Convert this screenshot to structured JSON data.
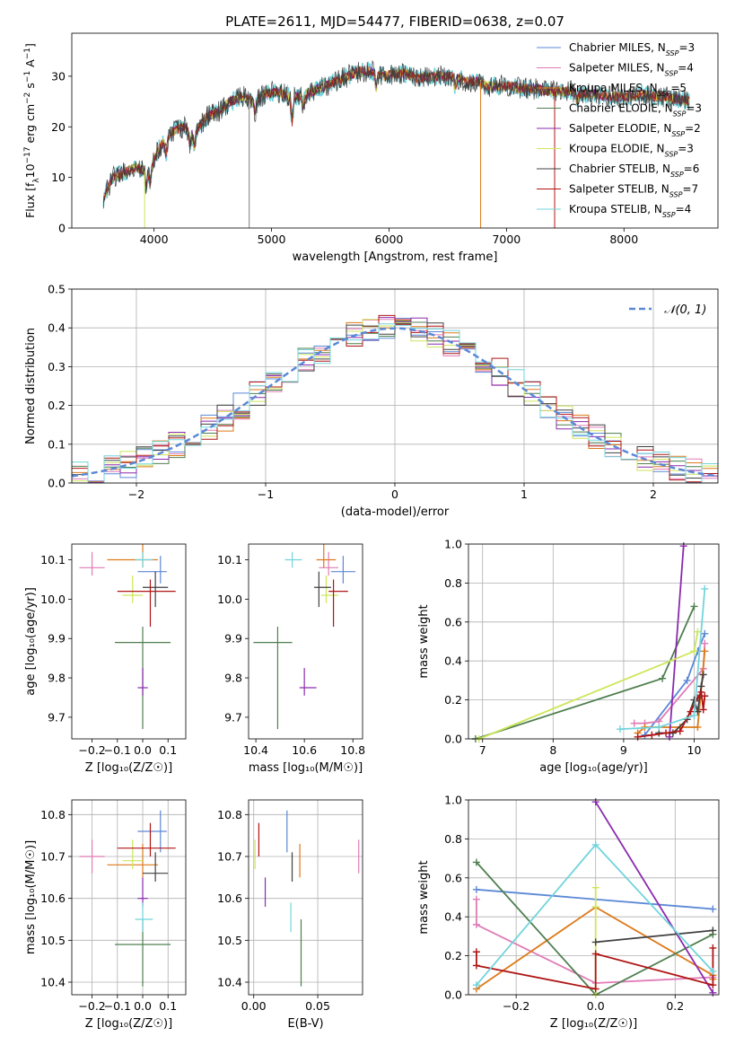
{
  "figure": {
    "title": "PLATE=2611, MJD=54477, FIBERID=0638, z=0.07"
  },
  "colors": {
    "Chabrier MILES": "#5b88d6",
    "Salpeter MILES": "#e07bb7",
    "Kroupa MILES": "#dd7a1a",
    "Chabrier ELODIE": "#4f7f4f",
    "Salpeter ELODIE": "#8b2aad",
    "Kroupa ELODIE": "#cde65a",
    "Chabrier STELIB": "#404040",
    "Salpeter STELIB": "#b01515",
    "Kroupa STELIB": "#72d4dc"
  },
  "chart_data": [
    {
      "id": "spectrum",
      "type": "line",
      "title": "PLATE=2611, MJD=54477, FIBERID=0638, z=0.07",
      "xlabel": "wavelength [Angstrom, rest frame]",
      "ylabel_parts": [
        "Flux [f",
        "λ",
        "10",
        "−17",
        " erg cm",
        "−2",
        " s",
        "−1",
        " A",
        "−1",
        "]"
      ],
      "xlim": [
        3300,
        8800
      ],
      "ylim": [
        0,
        38.5
      ],
      "xticks": [
        4000,
        5000,
        6000,
        7000,
        8000
      ],
      "yticks": [
        0,
        10,
        20,
        30
      ],
      "legend_location": "top-right",
      "legend": [
        {
          "model": "Chabrier MILES",
          "nssp": "3"
        },
        {
          "model": "Salpeter MILES",
          "nssp": "4"
        },
        {
          "model": "Kroupa MILES",
          "nssp": "5"
        },
        {
          "model": "Chabrier ELODIE",
          "nssp": "3"
        },
        {
          "model": "Salpeter ELODIE",
          "nssp": "2"
        },
        {
          "model": "Kroupa ELODIE",
          "nssp": "3"
        },
        {
          "model": "Chabrier STELIB",
          "nssp": "6"
        },
        {
          "model": "Salpeter STELIB",
          "nssp": "7"
        },
        {
          "model": "Kroupa STELIB",
          "nssp": "4"
        }
      ],
      "continuum": [
        [
          3570,
          6
        ],
        [
          3650,
          10
        ],
        [
          3750,
          11
        ],
        [
          3850,
          12
        ],
        [
          3950,
          11
        ],
        [
          4050,
          16
        ],
        [
          4150,
          19
        ],
        [
          4250,
          20
        ],
        [
          4350,
          19
        ],
        [
          4450,
          22
        ],
        [
          4550,
          23
        ],
        [
          4650,
          25
        ],
        [
          4750,
          26
        ],
        [
          4850,
          25
        ],
        [
          4950,
          26.5
        ],
        [
          5050,
          27
        ],
        [
          5150,
          26
        ],
        [
          5250,
          26
        ],
        [
          5350,
          27
        ],
        [
          5450,
          28
        ],
        [
          5550,
          29
        ],
        [
          5650,
          30
        ],
        [
          5750,
          31
        ],
        [
          5850,
          31
        ],
        [
          5950,
          30
        ],
        [
          6050,
          30.5
        ],
        [
          6150,
          30.5
        ],
        [
          6250,
          29.5
        ],
        [
          6350,
          30
        ],
        [
          6450,
          30
        ],
        [
          6550,
          30
        ],
        [
          6650,
          29
        ],
        [
          6750,
          29
        ],
        [
          6850,
          28
        ],
        [
          6950,
          28
        ],
        [
          7050,
          28
        ],
        [
          7150,
          27.5
        ],
        [
          7250,
          27.5
        ],
        [
          7350,
          27
        ],
        [
          7450,
          27
        ],
        [
          7550,
          27
        ],
        [
          7650,
          26.5
        ],
        [
          7750,
          26.5
        ],
        [
          7850,
          26
        ],
        [
          7950,
          26
        ],
        [
          8050,
          26
        ],
        [
          8150,
          26.5
        ],
        [
          8250,
          26
        ],
        [
          8350,
          26
        ],
        [
          8450,
          25.5
        ],
        [
          8550,
          25
        ]
      ],
      "absorption": [
        [
          3934,
          3
        ],
        [
          3969,
          3
        ],
        [
          4102,
          3
        ],
        [
          4305,
          3
        ],
        [
          4341,
          3
        ],
        [
          4861,
          2
        ],
        [
          5175,
          5
        ],
        [
          5270,
          2
        ],
        [
          5890,
          3
        ],
        [
          6563,
          2
        ],
        [
          7600,
          1.5
        ]
      ],
      "spikes": [
        [
          3920,
          0
        ],
        [
          4810,
          0
        ],
        [
          6780,
          0
        ],
        [
          7410,
          0
        ]
      ]
    },
    {
      "id": "residuals",
      "type": "histogram",
      "xlabel": "(data-model)/error",
      "ylabel": "Normed distribution",
      "xlim": [
        -2.5,
        2.5
      ],
      "ylim": [
        0,
        0.5
      ],
      "xticks": [
        -2,
        -1,
        0,
        1,
        2
      ],
      "yticks": [
        0,
        0.1,
        0.2,
        0.3,
        0.4,
        0.5
      ],
      "bin_width": 0.125,
      "legend_location": "top-right",
      "reference_curve": {
        "label": "𝒩(0, 1)",
        "mean": 0,
        "sigma": 1
      }
    },
    {
      "id": "z-age",
      "type": "scatter",
      "xlabel": "Z [log₁₀(Z/Z☉)]",
      "ylabel": "age [log₁₀(age/yr)]",
      "xlim": [
        -0.28,
        0.17
      ],
      "ylim": [
        9.645,
        10.14
      ],
      "xticks": [
        -0.2,
        -0.1,
        0.0,
        0.1
      ],
      "yticks": [
        9.7,
        9.8,
        9.9,
        10.0,
        10.1
      ]
    },
    {
      "id": "mass-age",
      "type": "scatter",
      "xlabel": "mass [log₁₀(M/M☉)]",
      "ylabel": "",
      "xlim": [
        10.37,
        10.84
      ],
      "ylim": [
        9.645,
        10.14
      ],
      "xticks": [
        10.4,
        10.6,
        10.8
      ],
      "yticks": [
        9.7,
        9.8,
        9.9,
        10.0,
        10.1
      ]
    },
    {
      "id": "z-mass",
      "type": "scatter",
      "xlabel": "Z [log₁₀(Z/Z☉)]",
      "ylabel": "mass [log₁₀(M/M☉)]",
      "xlim": [
        -0.28,
        0.17
      ],
      "ylim": [
        10.37,
        10.835
      ],
      "xticks": [
        -0.2,
        -0.1,
        0.0,
        0.1
      ],
      "yticks": [
        10.4,
        10.5,
        10.6,
        10.7,
        10.8
      ]
    },
    {
      "id": "ebv-mass",
      "type": "scatter",
      "xlabel": "E(B-V)",
      "ylabel": "",
      "xlim": [
        -0.004,
        0.085
      ],
      "ylim": [
        10.37,
        10.835
      ],
      "xticks": [
        0.0,
        0.05
      ],
      "yticks": [
        10.4,
        10.5,
        10.6,
        10.7,
        10.8
      ]
    },
    {
      "id": "age-weight",
      "type": "line",
      "xlabel": "age [log₁₀(age/yr)]",
      "ylabel": "mass weight",
      "xlim": [
        6.8,
        10.35
      ],
      "ylim": [
        0,
        1.0
      ],
      "xticks": [
        7,
        8,
        9,
        10
      ],
      "yticks": [
        0.0,
        0.2,
        0.4,
        0.6,
        0.8,
        1.0
      ],
      "series": [
        {
          "model": "Chabrier MILES",
          "x": [
            9.3,
            9.9,
            10.05,
            10.15
          ],
          "y": [
            0.02,
            0.3,
            0.45,
            0.54
          ]
        },
        {
          "model": "Salpeter MILES",
          "x": [
            9.15,
            9.3,
            9.5,
            10.13,
            10.15
          ],
          "y": [
            0.08,
            0.08,
            0.09,
            0.36,
            0.49
          ]
        },
        {
          "model": "Kroupa MILES",
          "x": [
            9.2,
            9.3,
            9.5,
            9.8,
            10.05,
            10.15
          ],
          "y": [
            0.03,
            0.06,
            0.06,
            0.06,
            0.06,
            0.45
          ]
        },
        {
          "model": "Chabrier ELODIE",
          "x": [
            6.9,
            9.55,
            10.0
          ],
          "y": [
            0.0,
            0.31,
            0.68
          ]
        },
        {
          "model": "Salpeter ELODIE",
          "x": [
            9.65,
            9.85
          ],
          "y": [
            0.01,
            0.99
          ]
        },
        {
          "model": "Kroupa ELODIE",
          "x": [
            6.95,
            10.0,
            10.05
          ],
          "y": [
            0.0,
            0.45,
            0.55
          ]
        },
        {
          "model": "Chabrier STELIB",
          "x": [
            9.5,
            9.7,
            9.9,
            10.0,
            10.05,
            10.1,
            10.13
          ],
          "y": [
            0.03,
            0.03,
            0.1,
            0.2,
            0.14,
            0.27,
            0.33
          ]
        },
        {
          "model": "Salpeter STELIB",
          "x": [
            9.2,
            9.4,
            9.6,
            9.8,
            9.95,
            10.05,
            10.1,
            10.13,
            10.15
          ],
          "y": [
            0.01,
            0.02,
            0.03,
            0.04,
            0.14,
            0.21,
            0.24,
            0.15,
            0.22
          ]
        },
        {
          "model": "Kroupa STELIB",
          "x": [
            8.95,
            9.5,
            10.0,
            10.15
          ],
          "y": [
            0.05,
            0.06,
            0.12,
            0.77
          ]
        }
      ]
    },
    {
      "id": "z-weight",
      "type": "line",
      "xlabel": "Z [log₁₀(Z/Z☉)]",
      "ylabel": "mass weight",
      "xlim": [
        -0.32,
        0.31
      ],
      "ylim": [
        0,
        1.0
      ],
      "xticks": [
        -0.2,
        0.0,
        0.2
      ],
      "yticks": [
        0.0,
        0.2,
        0.4,
        0.6,
        0.8,
        1.0
      ],
      "series": [
        {
          "model": "Chabrier MILES",
          "x": [
            -0.3,
            0.295
          ],
          "y": [
            0.54,
            0.44
          ]
        },
        {
          "model": "Salpeter MILES",
          "x": [
            -0.3,
            -0.3,
            0.0,
            0.295
          ],
          "y": [
            0.49,
            0.36,
            0.06,
            0.09
          ]
        },
        {
          "model": "Kroupa MILES",
          "x": [
            -0.3,
            0.0,
            0.295,
            0.295
          ],
          "y": [
            0.03,
            0.45,
            0.1,
            0.08
          ]
        },
        {
          "model": "Chabrier ELODIE",
          "x": [
            -0.3,
            0.0,
            0.295
          ],
          "y": [
            0.68,
            0.0,
            0.31
          ]
        },
        {
          "model": "Salpeter ELODIE",
          "x": [
            0.0,
            0.295
          ],
          "y": [
            0.99,
            0.01
          ]
        },
        {
          "model": "Kroupa ELODIE",
          "x": [
            0.0,
            0.0,
            0.0
          ],
          "y": [
            0.55,
            0.45,
            0.0
          ]
        },
        {
          "model": "Chabrier STELIB",
          "x": [
            0.0,
            0.295
          ],
          "y": [
            0.27,
            0.33
          ]
        },
        {
          "model": "Salpeter STELIB",
          "x": [
            -0.3,
            -0.3,
            0.0,
            0.0,
            0.295,
            0.295
          ],
          "y": [
            0.22,
            0.15,
            0.03,
            0.21,
            0.05,
            0.24
          ]
        },
        {
          "model": "Kroupa STELIB",
          "x": [
            -0.3,
            0.0,
            0.295
          ],
          "y": [
            0.05,
            0.77,
            0.12
          ]
        }
      ]
    }
  ],
  "fits": [
    {
      "model": "Chabrier MILES",
      "Z": [
        0.07,
        0.09,
        0.025
      ],
      "age": [
        10.07,
        0.03,
        0.04
      ],
      "mass": [
        10.76,
        0.05,
        0.05
      ],
      "ebv": [
        0.026,
        0.004
      ]
    },
    {
      "model": "Salpeter MILES",
      "Z": [
        -0.2,
        0.05,
        0.05
      ],
      "age": [
        10.08,
        0.02,
        0.04
      ],
      "mass": [
        10.7,
        0.04,
        0.04
      ],
      "ebv": [
        0.082,
        0.004
      ]
    },
    {
      "model": "Kroupa MILES",
      "Z": [
        0.0,
        0.14,
        0.06
      ],
      "age": [
        10.1,
        0.02,
        0.04
      ],
      "mass": [
        10.68,
        0.03,
        0.05
      ],
      "ebv": [
        0.036,
        0.004
      ]
    },
    {
      "model": "Chabrier ELODIE",
      "Z": [
        0.0,
        0.11,
        0.11
      ],
      "age": [
        9.89,
        0.22,
        0.04
      ],
      "mass": [
        10.49,
        0.1,
        0.06
      ],
      "ebv": [
        0.037,
        0.004
      ]
    },
    {
      "model": "Salpeter ELODIE",
      "Z": [
        0.0,
        0.02,
        0.02
      ],
      "age": [
        9.775,
        0.02,
        0.05
      ],
      "mass": [
        10.6,
        0.02,
        0.05
      ],
      "ebv": [
        0.009,
        0.004
      ]
    },
    {
      "model": "Kroupa ELODIE",
      "Z": [
        -0.04,
        0.04,
        0.04
      ],
      "age": [
        10.01,
        0.02,
        0.05
      ],
      "mass": [
        10.69,
        0.02,
        0.05
      ],
      "ebv": [
        0.001,
        0.004
      ]
    },
    {
      "model": "Chabrier STELIB",
      "Z": [
        0.05,
        0.05,
        0.05
      ],
      "age": [
        10.03,
        0.05,
        0.04
      ],
      "mass": [
        10.66,
        0.02,
        0.05
      ],
      "ebv": [
        0.03,
        0.004
      ]
    },
    {
      "model": "Salpeter STELIB",
      "Z": [
        0.03,
        0.13,
        0.1
      ],
      "age": [
        10.02,
        0.09,
        0.03
      ],
      "mass": [
        10.72,
        0.02,
        0.06
      ],
      "ebv": [
        0.004,
        0.004
      ]
    },
    {
      "model": "Kroupa STELIB",
      "Z": [
        0.0,
        0.03,
        0.04
      ],
      "age": [
        10.1,
        0.02,
        0.02
      ],
      "mass": [
        10.55,
        0.03,
        0.04
      ],
      "ebv": [
        0.029,
        0.004
      ]
    }
  ]
}
